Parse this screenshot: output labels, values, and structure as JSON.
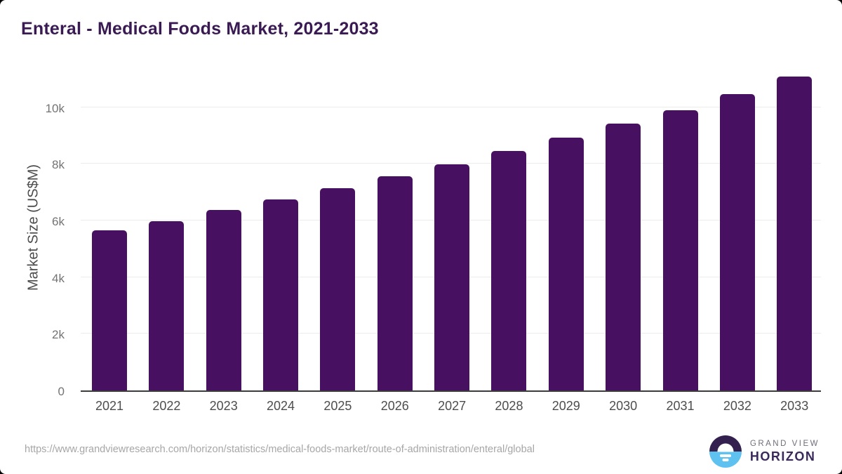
{
  "title": "Enteral - Medical Foods Market, 2021-2033",
  "chart_data": {
    "type": "bar",
    "title": "Enteral - Medical Foods Market, 2021-2033",
    "categories": [
      "2021",
      "2022",
      "2023",
      "2024",
      "2025",
      "2026",
      "2027",
      "2028",
      "2029",
      "2030",
      "2031",
      "2032",
      "2033"
    ],
    "values": [
      5650,
      5980,
      6380,
      6740,
      7150,
      7560,
      7990,
      8440,
      8920,
      9410,
      9900,
      10460,
      11080
    ],
    "xlabel": "",
    "ylabel": "Market Size (US$M)",
    "ylim": [
      0,
      11300
    ],
    "yticks": [
      {
        "label": "0",
        "value": 0
      },
      {
        "label": "2k",
        "value": 2000
      },
      {
        "label": "4k",
        "value": 4000
      },
      {
        "label": "6k",
        "value": 6000
      },
      {
        "label": "8k",
        "value": 8000
      },
      {
        "label": "10k",
        "value": 10000
      }
    ],
    "grid": true,
    "legend": "none",
    "bar_color": "#481060"
  },
  "footer": {
    "source_url": "https://www.grandviewresearch.com/horizon/statistics/medical-foods-market/route-of-administration/enteral/global",
    "brand": {
      "line1": "GRAND VIEW",
      "line2": "HORIZON",
      "logo_icon": "horizon-sun-icon",
      "logo_top_color": "#33204e",
      "logo_bottom_color": "#5ec1ef"
    }
  },
  "colors": {
    "title": "#3a1a53",
    "bar": "#481060",
    "gridline": "#ececec",
    "axis_line": "#3c3c3c",
    "tick_text": "#737373",
    "x_tick_text": "#4d4d4d",
    "url_text": "#a6a6a6"
  }
}
